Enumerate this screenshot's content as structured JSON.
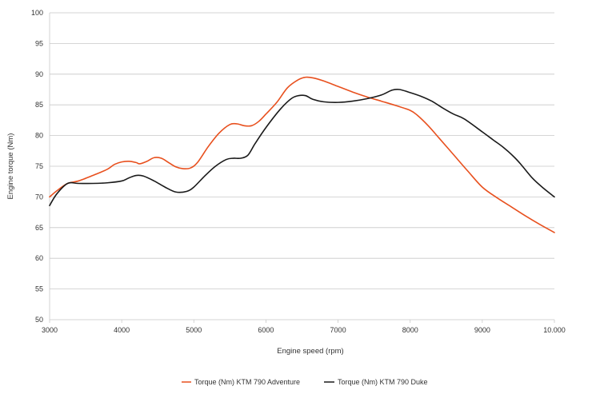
{
  "chart_data": {
    "type": "line",
    "title": "",
    "xlabel": "Engine speed (rpm)",
    "ylabel": "Engine torque (Nm)",
    "xlim": [
      3000,
      10000
    ],
    "ylim": [
      50,
      100
    ],
    "x_ticks": [
      {
        "value": 3000,
        "label": "3000"
      },
      {
        "value": 4000,
        "label": "4000"
      },
      {
        "value": 5000,
        "label": "5000"
      },
      {
        "value": 6000,
        "label": "6000"
      },
      {
        "value": 7000,
        "label": "7000"
      },
      {
        "value": 8000,
        "label": "8000"
      },
      {
        "value": 9000,
        "label": "9000"
      },
      {
        "value": 10000,
        "label": "10.000"
      }
    ],
    "y_ticks": [
      {
        "value": 50,
        "label": "50"
      },
      {
        "value": 55,
        "label": "55"
      },
      {
        "value": 60,
        "label": "60"
      },
      {
        "value": 65,
        "label": "65"
      },
      {
        "value": 70,
        "label": "70"
      },
      {
        "value": 75,
        "label": "75"
      },
      {
        "value": 80,
        "label": "80"
      },
      {
        "value": 85,
        "label": "85"
      },
      {
        "value": 90,
        "label": "90"
      },
      {
        "value": 95,
        "label": "95"
      },
      {
        "value": 100,
        "label": "100"
      }
    ],
    "grid": "horizontal",
    "legend_position": "bottom-center",
    "series": [
      {
        "name": "Torque (Nm) KTM 790 Adventure",
        "color": "#e8501e",
        "points": [
          [
            3000,
            70.0
          ],
          [
            3100,
            71.0
          ],
          [
            3250,
            72.2
          ],
          [
            3400,
            72.6
          ],
          [
            3600,
            73.5
          ],
          [
            3800,
            74.5
          ],
          [
            3900,
            75.3
          ],
          [
            4000,
            75.7
          ],
          [
            4100,
            75.8
          ],
          [
            4200,
            75.6
          ],
          [
            4250,
            75.4
          ],
          [
            4350,
            75.8
          ],
          [
            4450,
            76.4
          ],
          [
            4550,
            76.3
          ],
          [
            4650,
            75.6
          ],
          [
            4750,
            74.9
          ],
          [
            4850,
            74.6
          ],
          [
            4950,
            74.7
          ],
          [
            5050,
            75.6
          ],
          [
            5200,
            78.2
          ],
          [
            5350,
            80.4
          ],
          [
            5500,
            81.8
          ],
          [
            5600,
            81.9
          ],
          [
            5700,
            81.6
          ],
          [
            5800,
            81.6
          ],
          [
            5900,
            82.3
          ],
          [
            6000,
            83.5
          ],
          [
            6150,
            85.4
          ],
          [
            6300,
            87.8
          ],
          [
            6450,
            89.1
          ],
          [
            6550,
            89.5
          ],
          [
            6650,
            89.4
          ],
          [
            6800,
            88.9
          ],
          [
            7000,
            88.0
          ],
          [
            7200,
            87.1
          ],
          [
            7400,
            86.3
          ],
          [
            7600,
            85.6
          ],
          [
            7800,
            84.9
          ],
          [
            8000,
            84.1
          ],
          [
            8100,
            83.3
          ],
          [
            8250,
            81.6
          ],
          [
            8400,
            79.6
          ],
          [
            8600,
            76.9
          ],
          [
            8800,
            74.2
          ],
          [
            9000,
            71.6
          ],
          [
            9200,
            69.9
          ],
          [
            9400,
            68.4
          ],
          [
            9600,
            66.9
          ],
          [
            9800,
            65.5
          ],
          [
            10000,
            64.2
          ]
        ]
      },
      {
        "name": "Torque (Nm) KTM 790 Duke",
        "color": "#1a1a1a",
        "points": [
          [
            3000,
            68.6
          ],
          [
            3100,
            70.5
          ],
          [
            3250,
            72.2
          ],
          [
            3400,
            72.2
          ],
          [
            3600,
            72.2
          ],
          [
            3800,
            72.3
          ],
          [
            4000,
            72.6
          ],
          [
            4100,
            73.1
          ],
          [
            4200,
            73.5
          ],
          [
            4300,
            73.4
          ],
          [
            4450,
            72.6
          ],
          [
            4600,
            71.6
          ],
          [
            4750,
            70.8
          ],
          [
            4900,
            70.9
          ],
          [
            5000,
            71.6
          ],
          [
            5150,
            73.4
          ],
          [
            5300,
            75.0
          ],
          [
            5450,
            76.1
          ],
          [
            5550,
            76.3
          ],
          [
            5650,
            76.3
          ],
          [
            5750,
            76.8
          ],
          [
            5850,
            78.7
          ],
          [
            6000,
            81.3
          ],
          [
            6200,
            84.3
          ],
          [
            6350,
            86.0
          ],
          [
            6450,
            86.5
          ],
          [
            6550,
            86.5
          ],
          [
            6650,
            85.9
          ],
          [
            6800,
            85.5
          ],
          [
            7000,
            85.4
          ],
          [
            7200,
            85.6
          ],
          [
            7400,
            86.0
          ],
          [
            7600,
            86.6
          ],
          [
            7750,
            87.4
          ],
          [
            7850,
            87.5
          ],
          [
            8000,
            87.0
          ],
          [
            8150,
            86.4
          ],
          [
            8300,
            85.6
          ],
          [
            8450,
            84.5
          ],
          [
            8600,
            83.5
          ],
          [
            8750,
            82.7
          ],
          [
            9000,
            80.6
          ],
          [
            9150,
            79.3
          ],
          [
            9300,
            78.0
          ],
          [
            9450,
            76.4
          ],
          [
            9550,
            75.1
          ],
          [
            9700,
            73.0
          ],
          [
            9850,
            71.4
          ],
          [
            10000,
            70.0
          ]
        ]
      }
    ]
  }
}
